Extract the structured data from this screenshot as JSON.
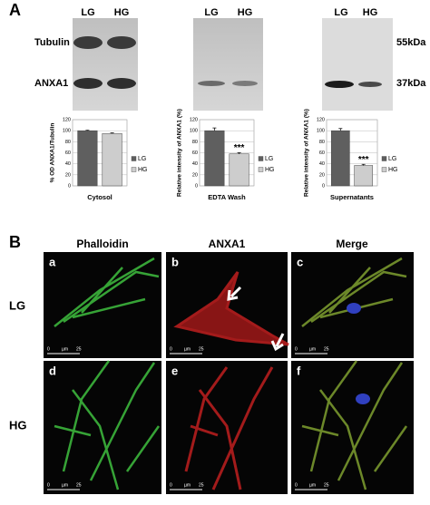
{
  "panel_a": {
    "label": "A",
    "blot_lanes": [
      "LG",
      "HG"
    ],
    "blot_rows": [
      "Tubulin",
      "ANXA1"
    ],
    "markers": [
      "55kDa",
      "37kDa"
    ]
  },
  "chart_data": [
    {
      "type": "bar",
      "categories": [
        "Cytosol"
      ],
      "y_label": "% OD ANXA1/Tubulin",
      "series": [
        {
          "name": "LG",
          "color": "#5f5f5f",
          "values": [
            100
          ],
          "errors": [
            1
          ]
        },
        {
          "name": "HG",
          "color": "#cdcdcd",
          "values": [
            95
          ],
          "errors": [
            1
          ]
        }
      ],
      "ylim": [
        0,
        120
      ],
      "yticks": [
        0,
        20,
        40,
        60,
        80,
        100,
        120
      ],
      "grid": true
    },
    {
      "type": "bar",
      "categories": [
        "EDTA Wash"
      ],
      "y_label": "Relative intensity of ANXA1 (%)",
      "series": [
        {
          "name": "LG",
          "color": "#5f5f5f",
          "values": [
            100
          ],
          "errors": [
            5
          ]
        },
        {
          "name": "HG",
          "color": "#cdcdcd",
          "values": [
            58
          ],
          "errors": [
            2
          ]
        }
      ],
      "annotation": "***",
      "ylim": [
        0,
        120
      ],
      "yticks": [
        0,
        20,
        40,
        60,
        80,
        100,
        120
      ],
      "grid": true
    },
    {
      "type": "bar",
      "categories": [
        "Supernatants"
      ],
      "y_label": "Relative intensity of ANXA1 (%)",
      "series": [
        {
          "name": "LG",
          "color": "#5f5f5f",
          "values": [
            100
          ],
          "errors": [
            4
          ]
        },
        {
          "name": "HG",
          "color": "#cdcdcd",
          "values": [
            37
          ],
          "errors": [
            2
          ]
        }
      ],
      "annotation": "***",
      "ylim": [
        0,
        120
      ],
      "yticks": [
        0,
        20,
        40,
        60,
        80,
        100,
        120
      ],
      "grid": true
    }
  ],
  "panel_b": {
    "label": "B",
    "columns": [
      "Phalloidin",
      "ANXA1",
      "Merge"
    ],
    "rows": [
      "LG",
      "HG"
    ],
    "images": [
      "a",
      "b",
      "c",
      "d",
      "e",
      "f"
    ],
    "scale_bar": {
      "start": "0",
      "unit": "µm",
      "end": "25"
    }
  }
}
